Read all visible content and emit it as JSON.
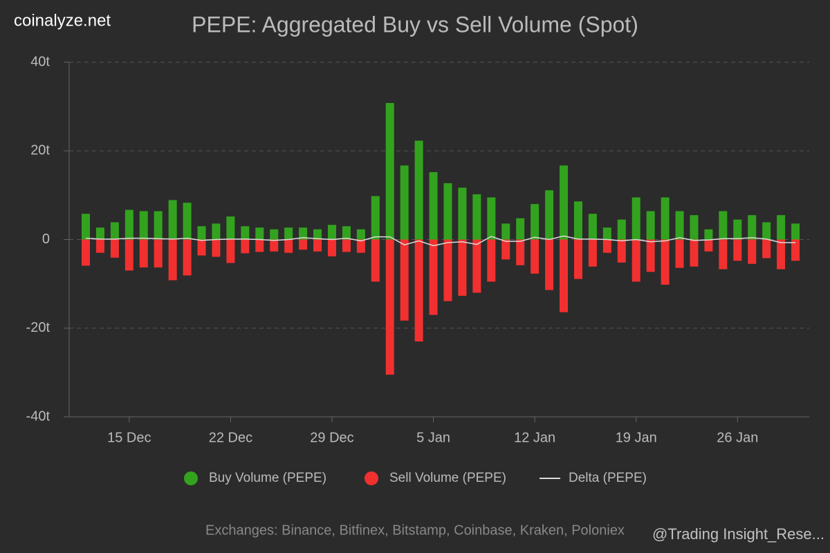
{
  "brand": "coinalyze.net",
  "watermark": "@Trading Insight_Rese...",
  "chart_data": {
    "type": "bar",
    "title": "PEPE: Aggregated Buy vs Sell Volume (Spot)",
    "footer": "Exchanges: Binance, Bitfinex, Bitstamp, Coinbase, Kraken, Poloniex",
    "categories": [
      null,
      null,
      null,
      "15 Dec",
      null,
      null,
      null,
      null,
      null,
      null,
      "22 Dec",
      null,
      null,
      null,
      null,
      null,
      null,
      "29 Dec",
      null,
      null,
      null,
      null,
      null,
      null,
      "5 Jan",
      null,
      null,
      null,
      null,
      null,
      null,
      "12 Jan",
      null,
      null,
      null,
      null,
      null,
      null,
      "19 Jan",
      null,
      null,
      null,
      null,
      null,
      null,
      "26 Jan",
      null,
      null,
      null,
      null
    ],
    "series": [
      {
        "name": "Buy Volume (PEPE)",
        "color": "#33a31f",
        "kind": "bar",
        "values": [
          5.8,
          2.7,
          3.9,
          6.7,
          6.4,
          6.4,
          8.9,
          8.3,
          3.0,
          3.6,
          5.2,
          3.0,
          2.7,
          2.3,
          2.7,
          2.7,
          2.3,
          3.3,
          3.0,
          2.3,
          9.8,
          30.8,
          16.7,
          22.3,
          15.2,
          12.7,
          11.7,
          10.2,
          9.5,
          3.6,
          4.8,
          8.0,
          11.1,
          16.7,
          8.6,
          5.8,
          2.7,
          4.5,
          9.5,
          6.4,
          9.5,
          6.4,
          5.5,
          2.3,
          6.4,
          4.5,
          5.5,
          3.9,
          5.5,
          3.6
        ]
      },
      {
        "name": "Sell Volume (PEPE)",
        "color": "#f23030",
        "kind": "bar",
        "values": [
          -5.9,
          -3.0,
          -4.1,
          -7.0,
          -6.3,
          -6.3,
          -9.2,
          -8.1,
          -3.6,
          -3.9,
          -5.3,
          -3.1,
          -2.8,
          -2.7,
          -3.0,
          -2.3,
          -2.7,
          -3.8,
          -2.8,
          -3.0,
          -9.5,
          -30.5,
          -18.3,
          -23.0,
          -17.0,
          -13.9,
          -12.7,
          -12.0,
          -9.5,
          -4.5,
          -5.8,
          -7.7,
          -11.4,
          -16.4,
          -8.9,
          -6.1,
          -3.0,
          -5.2,
          -9.5,
          -7.3,
          -10.2,
          -6.4,
          -6.1,
          -2.7,
          -6.7,
          -4.8,
          -5.5,
          -4.2,
          -6.7,
          -4.8
        ]
      },
      {
        "name": "Delta (PEPE)",
        "color": "#dddddd",
        "kind": "line",
        "values": [
          0.3,
          0.1,
          0.1,
          0.3,
          0.3,
          0.2,
          0.1,
          0.3,
          -0.2,
          0,
          0.1,
          0.1,
          0,
          -0.2,
          0,
          0.4,
          0.2,
          0,
          0.3,
          -0.3,
          0.6,
          0.6,
          -1.2,
          -0.3,
          -1.4,
          -0.7,
          -0.5,
          -1.1,
          0.7,
          -0.4,
          -0.4,
          0.5,
          0,
          0.8,
          0.1,
          0.1,
          0,
          -0.3,
          0,
          -0.5,
          -0.3,
          0.4,
          -0.2,
          -0.1,
          0.2,
          0.2,
          0.4,
          0.1,
          -0.7,
          -0.7
        ]
      }
    ],
    "ylim": [
      -40,
      40
    ],
    "yticks": [
      {
        "value": -40,
        "label": "-40t"
      },
      {
        "value": -20,
        "label": "-20t"
      },
      0,
      {
        "value": 20,
        "label": "20t"
      },
      {
        "value": 40,
        "label": "40t"
      }
    ],
    "grid": true
  }
}
